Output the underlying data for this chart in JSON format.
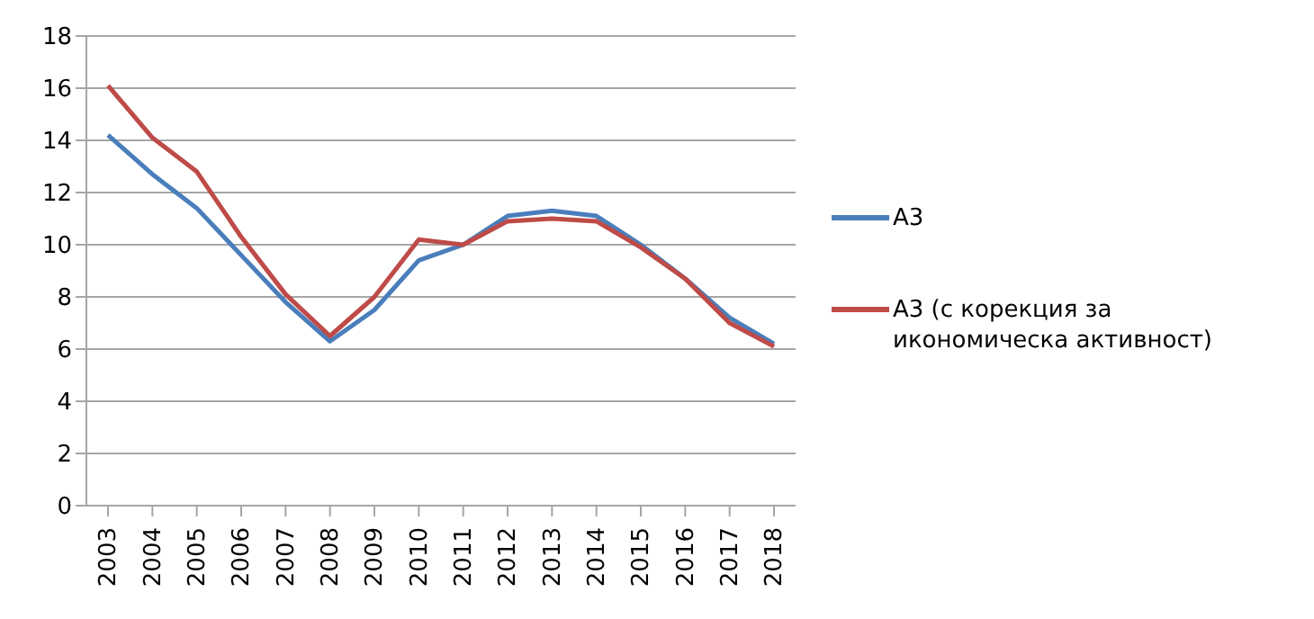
{
  "chart_data": {
    "type": "line",
    "categories": [
      "2003",
      "2004",
      "2005",
      "2006",
      "2007",
      "2008",
      "2009",
      "2010",
      "2011",
      "2012",
      "2013",
      "2014",
      "2015",
      "2016",
      "2017",
      "2018"
    ],
    "series": [
      {
        "name": "A3",
        "color": "#4a7ebb",
        "values": [
          14.2,
          12.7,
          11.4,
          9.6,
          7.8,
          6.3,
          7.5,
          9.4,
          10.0,
          11.1,
          11.3,
          11.1,
          10.0,
          8.7,
          7.2,
          6.2
        ]
      },
      {
        "name": "A3 (с корекция за икономическа активност)",
        "color": "#be4b48",
        "values": [
          16.1,
          14.1,
          12.8,
          10.3,
          8.1,
          6.5,
          8.0,
          10.2,
          10.0,
          10.9,
          11.0,
          10.9,
          9.9,
          8.7,
          7.0,
          6.1
        ]
      }
    ],
    "ylim": [
      0,
      18
    ],
    "yticks": [
      0,
      2,
      4,
      6,
      8,
      10,
      12,
      14,
      16,
      18
    ],
    "grid": "y",
    "legend": "right",
    "marker": "none",
    "line_style": "solid"
  }
}
